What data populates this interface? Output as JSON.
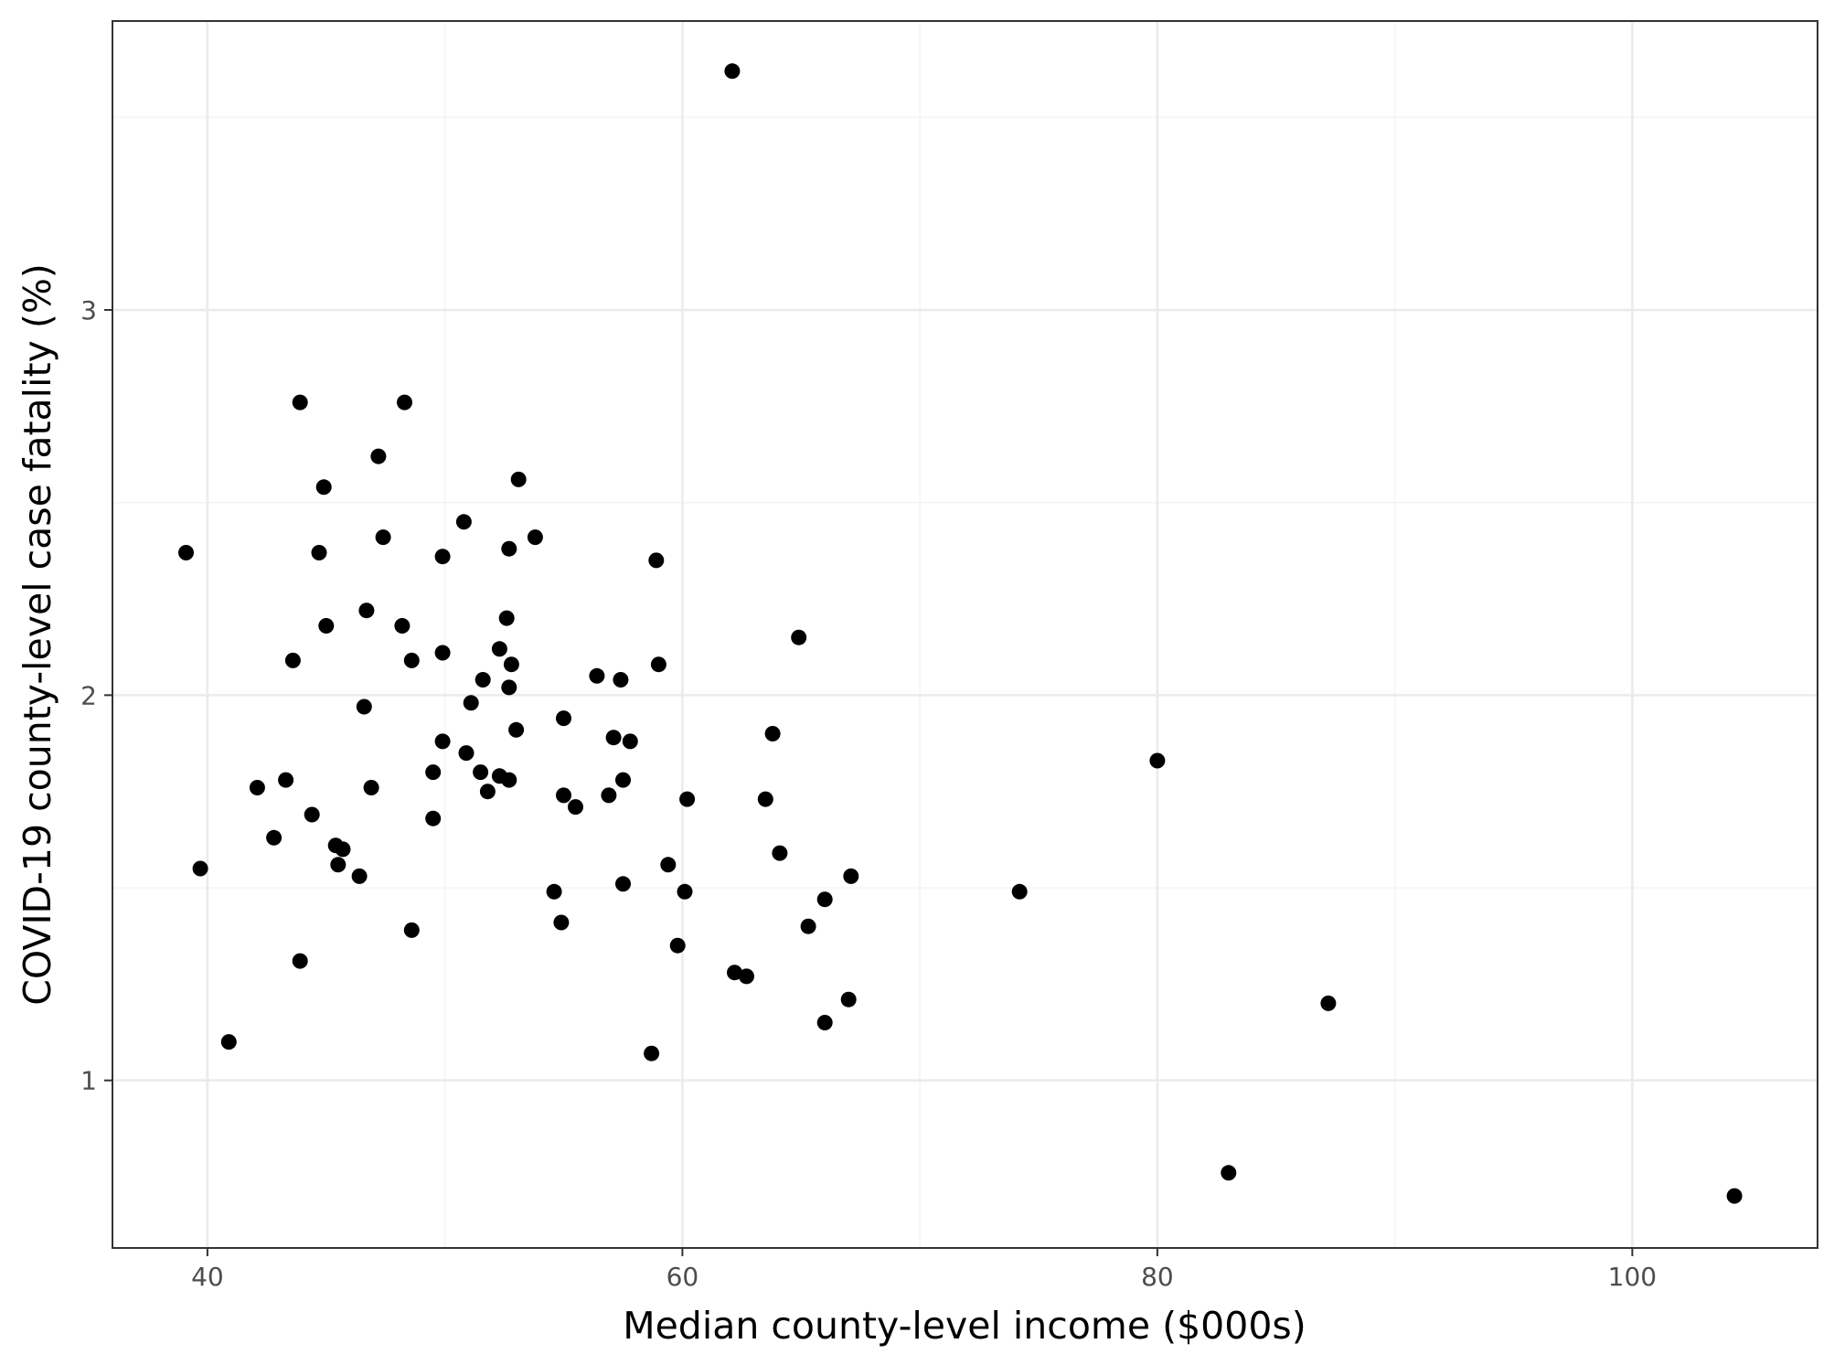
{
  "chart_data": {
    "type": "scatter",
    "title": "",
    "xlabel": "Median county-level income ($000s)",
    "ylabel": "COVID-19 county-level case fatality (%)",
    "xlim": [
      36.0,
      107.8
    ],
    "ylim": [
      0.565,
      3.75
    ],
    "x_ticks": [
      40,
      60,
      80,
      100
    ],
    "x_tick_labels": [
      "40",
      "60",
      "80",
      "100"
    ],
    "x_minor": [
      50,
      70,
      90
    ],
    "y_ticks": [
      1,
      2,
      3
    ],
    "y_tick_labels": [
      "1",
      "2",
      "3"
    ],
    "y_minor": [
      1.5,
      2.5,
      3.5
    ],
    "grid": true,
    "legend": "none",
    "point_color": "#000000",
    "x": [
      62.1,
      43.9,
      48.3,
      47.2,
      44.9,
      53.1,
      50.8,
      53.8,
      47.4,
      39.1,
      44.7,
      52.7,
      49.9,
      58.9,
      46.7,
      52.6,
      45.0,
      48.2,
      64.9,
      52.3,
      49.9,
      48.6,
      43.6,
      59.0,
      52.8,
      56.4,
      51.6,
      57.4,
      52.7,
      51.1,
      46.6,
      55.0,
      63.8,
      53.0,
      57.1,
      57.8,
      49.9,
      50.9,
      49.5,
      51.5,
      52.3,
      52.7,
      57.5,
      43.3,
      42.1,
      51.8,
      46.9,
      55.0,
      56.9,
      60.2,
      63.5,
      55.5,
      44.4,
      49.5,
      42.8,
      45.4,
      45.7,
      64.1,
      39.7,
      45.5,
      59.4,
      67.1,
      46.4,
      57.5,
      54.6,
      60.1,
      74.2,
      66.0,
      54.9,
      65.3,
      48.6,
      59.8,
      43.9,
      62.2,
      62.7,
      67.0,
      87.2,
      66.0,
      40.9,
      58.7,
      80.0,
      83.0,
      104.3
    ],
    "y": [
      3.62,
      2.76,
      2.76,
      2.62,
      2.54,
      2.56,
      2.45,
      2.41,
      2.41,
      2.37,
      2.37,
      2.38,
      2.36,
      2.35,
      2.22,
      2.2,
      2.18,
      2.18,
      2.15,
      2.12,
      2.11,
      2.09,
      2.09,
      2.08,
      2.08,
      2.05,
      2.04,
      2.04,
      2.02,
      1.98,
      1.97,
      1.94,
      1.9,
      1.91,
      1.89,
      1.88,
      1.88,
      1.85,
      1.8,
      1.8,
      1.79,
      1.78,
      1.78,
      1.78,
      1.76,
      1.75,
      1.76,
      1.74,
      1.74,
      1.73,
      1.73,
      1.71,
      1.69,
      1.68,
      1.63,
      1.61,
      1.6,
      1.59,
      1.55,
      1.56,
      1.56,
      1.53,
      1.53,
      1.51,
      1.49,
      1.49,
      1.49,
      1.47,
      1.41,
      1.4,
      1.39,
      1.35,
      1.31,
      1.28,
      1.27,
      1.21,
      1.2,
      1.15,
      1.1,
      1.07,
      1.83,
      0.76,
      0.7
    ]
  }
}
